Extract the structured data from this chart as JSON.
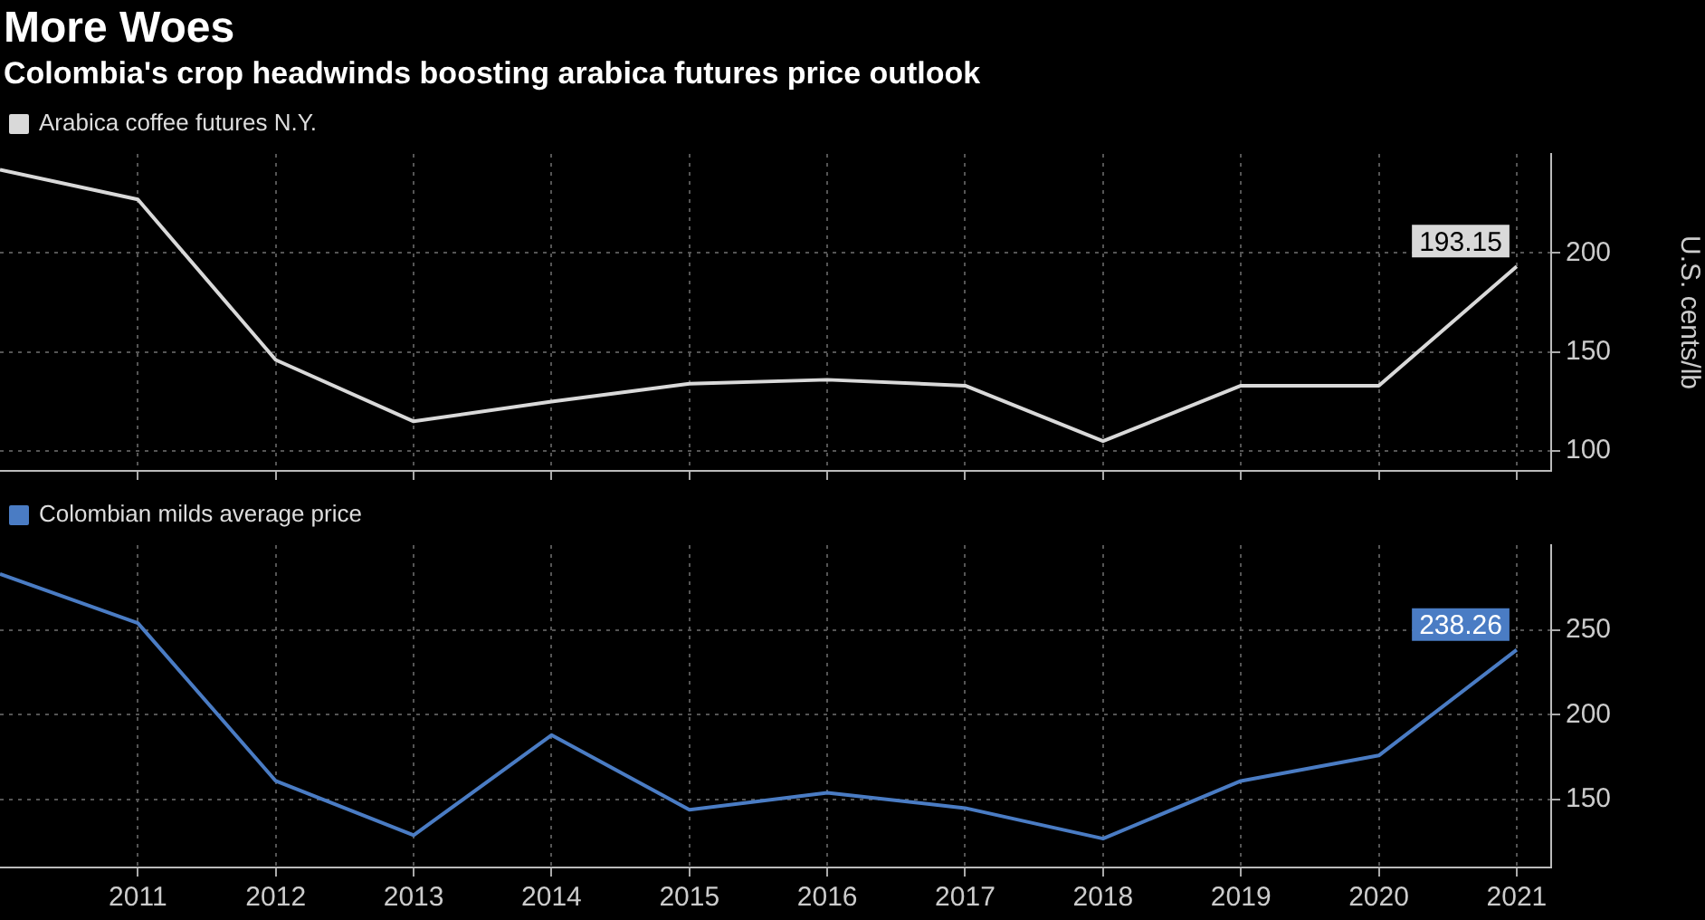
{
  "chart_data": [
    {
      "type": "line",
      "title": "More Woes",
      "subtitle": "Colombia's crop headwinds boosting arabica futures price outlook",
      "ylabel": "U.S. cents/lb",
      "x": [
        2010,
        2011,
        2012,
        2013,
        2014,
        2015,
        2016,
        2017,
        2018,
        2019,
        2020,
        2021
      ],
      "xlim": [
        2010,
        2021.25
      ],
      "xticks": [
        2011,
        2012,
        2013,
        2014,
        2015,
        2016,
        2017,
        2018,
        2019,
        2020,
        2021
      ],
      "ylim": [
        90,
        250
      ],
      "yticks": [
        100,
        150,
        200
      ],
      "series": [
        {
          "name": "Arabica coffee futures N.Y.",
          "color": "#d9d9d9",
          "values": [
            242,
            227,
            146,
            115,
            125,
            134,
            136,
            133,
            105,
            133,
            133,
            193.15
          ],
          "value_labels": [
            null,
            null,
            null,
            null,
            null,
            null,
            null,
            null,
            null,
            null,
            null,
            "193.15"
          ]
        }
      ],
      "grid": true,
      "legend": "top left",
      "tick_labels": "y",
      "marker": "none",
      "line_style": "solid"
    },
    {
      "type": "line",
      "x": [
        2010,
        2011,
        2012,
        2013,
        2014,
        2015,
        2016,
        2017,
        2018,
        2019,
        2020,
        2021
      ],
      "xlim": [
        2010,
        2021.25
      ],
      "xticks": [
        2011,
        2012,
        2013,
        2014,
        2015,
        2016,
        2017,
        2018,
        2019,
        2020,
        2021
      ],
      "ylim": [
        110,
        300
      ],
      "yticks": [
        150,
        200,
        250
      ],
      "series": [
        {
          "name": "Colombian milds average price",
          "color": "#4a7cc4",
          "values": [
            283,
            254,
            161,
            129,
            188,
            144,
            154,
            145,
            127,
            161,
            176,
            238.26
          ],
          "value_labels": [
            null,
            null,
            null,
            null,
            null,
            null,
            null,
            null,
            null,
            null,
            null,
            "238.26"
          ]
        }
      ],
      "grid": true,
      "legend": "top left",
      "marker": "none",
      "line_style": "solid"
    }
  ]
}
